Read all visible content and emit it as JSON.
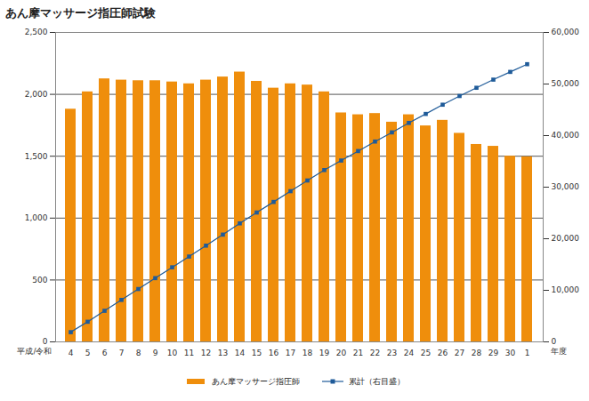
{
  "chart_data": {
    "type": "bar",
    "title": "あん摩マッサージ指圧師試験",
    "categories": [
      "4",
      "5",
      "6",
      "7",
      "8",
      "9",
      "10",
      "11",
      "12",
      "13",
      "14",
      "15",
      "16",
      "17",
      "18",
      "19",
      "20",
      "21",
      "22",
      "23",
      "24",
      "25",
      "26",
      "27",
      "28",
      "29",
      "30",
      "1"
    ],
    "series": [
      {
        "name": "あん摩マッサージ指圧師",
        "type": "bar",
        "color": "#ef8e0c",
        "values": [
          1880,
          2020,
          2125,
          2115,
          2110,
          2110,
          2100,
          2085,
          2115,
          2140,
          2180,
          2105,
          2050,
          2085,
          2075,
          2020,
          1850,
          1835,
          1845,
          1775,
          1835,
          1745,
          1790,
          1685,
          1595,
          1580,
          1500,
          1495
        ]
      },
      {
        "name": "累計（右目盛）",
        "type": "line",
        "axis": "y2",
        "color": "#1f5b99",
        "marker": "square",
        "values": [
          1880,
          3900,
          6025,
          8140,
          10250,
          12360,
          14460,
          16545,
          18660,
          20800,
          22980,
          25085,
          27135,
          29220,
          31295,
          33315,
          35165,
          37000,
          38845,
          40620,
          42455,
          44200,
          45990,
          47675,
          49270,
          50850,
          52350,
          53845
        ]
      }
    ],
    "annotations": [
      {
        "text": "平成/令和"
      },
      {
        "text": "年度"
      }
    ],
    "ylim": [
      0,
      2500
    ],
    "yticks": [
      0,
      500,
      {
        "value": 1000,
        "label": "1,000"
      },
      {
        "value": 1500,
        "label": "1,500"
      },
      {
        "value": 2000,
        "label": "2,000"
      },
      {
        "value": 2500,
        "label": "2,500"
      }
    ],
    "y2lim": [
      0,
      60000
    ],
    "y2ticks": [
      0,
      {
        "value": 10000,
        "label": "10,000"
      },
      {
        "value": 20000,
        "label": "20,000"
      },
      {
        "value": 30000,
        "label": "30,000"
      },
      {
        "value": 40000,
        "label": "40,000"
      },
      {
        "value": 50000,
        "label": "50,000"
      },
      {
        "value": 60000,
        "label": "60,000"
      }
    ],
    "grid": true,
    "legend": "bottom"
  }
}
